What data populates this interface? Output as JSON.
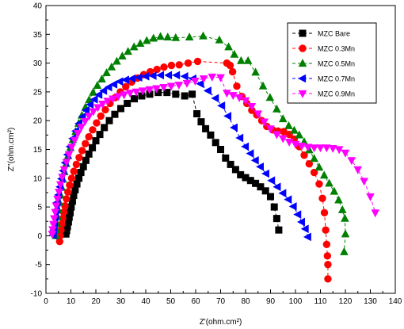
{
  "chart_data": {
    "type": "scatter",
    "xlabel": "Z'(ohm.cm²)",
    "ylabel": "Z''(ohm.cm²)",
    "xlim": [
      0,
      140
    ],
    "ylim": [
      -10,
      40
    ],
    "xticks": [
      0,
      10,
      20,
      30,
      40,
      50,
      60,
      70,
      80,
      90,
      100,
      110,
      120,
      130,
      140
    ],
    "yticks": [
      -10,
      -5,
      0,
      5,
      10,
      15,
      20,
      25,
      30,
      35,
      40
    ],
    "grid": false,
    "legend_position": "top-right",
    "series": [
      {
        "name": "MZC Bare",
        "color": "#000000",
        "marker": "square",
        "points": [
          [
            8.0,
            0.3
          ],
          [
            8.3,
            0.9
          ],
          [
            8.6,
            1.6
          ],
          [
            9.0,
            2.4
          ],
          [
            9.3,
            3.2
          ],
          [
            9.7,
            4.0
          ],
          [
            10.1,
            5.0
          ],
          [
            10.6,
            6.0
          ],
          [
            11.1,
            7.0
          ],
          [
            11.7,
            8.0
          ],
          [
            12.4,
            9.0
          ],
          [
            13.2,
            10.0
          ],
          [
            14.0,
            11.0
          ],
          [
            15.0,
            12.0
          ],
          [
            16.0,
            13.1
          ],
          [
            17.2,
            14.2
          ],
          [
            18.6,
            15.3
          ],
          [
            20.0,
            16.5
          ],
          [
            21.6,
            17.6
          ],
          [
            23.4,
            18.8
          ],
          [
            25.4,
            20.0
          ],
          [
            27.6,
            21.1
          ],
          [
            30.0,
            22.1
          ],
          [
            32.6,
            23.0
          ],
          [
            35.4,
            23.8
          ],
          [
            38.4,
            24.3
          ],
          [
            41.6,
            24.6
          ],
          [
            45.0,
            24.9
          ],
          [
            48.5,
            24.9
          ],
          [
            52.0,
            24.6
          ],
          [
            55.6,
            24.3
          ],
          [
            58.6,
            24.6
          ],
          [
            60.5,
            21.2
          ],
          [
            62.2,
            19.8
          ],
          [
            64.0,
            18.6
          ],
          [
            66.0,
            17.5
          ],
          [
            68.0,
            16.2
          ],
          [
            70.0,
            15.0
          ],
          [
            72.0,
            13.5
          ],
          [
            74.0,
            12.4
          ],
          [
            76.0,
            11.5
          ],
          [
            78.0,
            10.6
          ],
          [
            80.0,
            10.1
          ],
          [
            82.0,
            9.6
          ],
          [
            84.0,
            9.1
          ],
          [
            86.0,
            8.5
          ],
          [
            88.0,
            7.8
          ],
          [
            90.0,
            6.8
          ],
          [
            91.5,
            5.0
          ],
          [
            92.5,
            3.0
          ],
          [
            93.3,
            1.0
          ]
        ]
      },
      {
        "name": "MZC 0.3Mn",
        "color": "#ff0000",
        "marker": "circle",
        "points": [
          [
            5.5,
            -1.0
          ],
          [
            5.7,
            0.0
          ],
          [
            6.0,
            1.0
          ],
          [
            6.3,
            2.0
          ],
          [
            6.7,
            3.0
          ],
          [
            7.1,
            4.1
          ],
          [
            7.6,
            5.2
          ],
          [
            8.2,
            6.4
          ],
          [
            8.8,
            7.6
          ],
          [
            9.5,
            8.8
          ],
          [
            10.3,
            10.0
          ],
          [
            11.2,
            11.2
          ],
          [
            12.2,
            12.4
          ],
          [
            13.3,
            13.6
          ],
          [
            14.5,
            14.8
          ],
          [
            15.8,
            16.0
          ],
          [
            17.2,
            17.2
          ],
          [
            18.7,
            18.4
          ],
          [
            20.3,
            19.6
          ],
          [
            22.0,
            20.8
          ],
          [
            23.8,
            21.9
          ],
          [
            25.7,
            23.0
          ],
          [
            27.7,
            24.0
          ],
          [
            29.8,
            25.0
          ],
          [
            32.0,
            25.9
          ],
          [
            34.3,
            26.7
          ],
          [
            36.7,
            27.4
          ],
          [
            39.2,
            28.0
          ],
          [
            41.8,
            28.5
          ],
          [
            44.5,
            28.9
          ],
          [
            47.3,
            29.3
          ],
          [
            50.3,
            29.6
          ],
          [
            53.4,
            29.7
          ],
          [
            57.0,
            30.0
          ],
          [
            60.8,
            30.3
          ],
          [
            72.5,
            30.0
          ],
          [
            73.8,
            29.6
          ],
          [
            74.8,
            28.5
          ],
          [
            76.5,
            26.0
          ],
          [
            78.5,
            24.2
          ],
          [
            80.5,
            23.0
          ],
          [
            82.5,
            21.8
          ],
          [
            84.5,
            21.0
          ],
          [
            86.5,
            20.0
          ],
          [
            88.5,
            19.0
          ],
          [
            90.8,
            18.4
          ],
          [
            93.0,
            18.2
          ],
          [
            95.3,
            18.1
          ],
          [
            97.5,
            17.6
          ],
          [
            99.5,
            16.8
          ],
          [
            101.5,
            15.5
          ],
          [
            103.5,
            14.0
          ],
          [
            105.5,
            12.5
          ],
          [
            107.5,
            11.0
          ],
          [
            109.5,
            9.0
          ],
          [
            110.8,
            6.5
          ],
          [
            111.6,
            4.0
          ],
          [
            112.1,
            1.0
          ],
          [
            112.5,
            -1.5
          ],
          [
            112.8,
            -3.5
          ],
          [
            113.0,
            -5.0
          ],
          [
            113.0,
            -7.5
          ]
        ]
      },
      {
        "name": "MZC 0.5Mn",
        "color": "#008000",
        "marker": "triangle-up",
        "points": [
          [
            4.0,
            0.0
          ],
          [
            4.2,
            1.0
          ],
          [
            4.4,
            2.1
          ],
          [
            4.7,
            3.3
          ],
          [
            5.0,
            4.5
          ],
          [
            5.4,
            5.8
          ],
          [
            5.8,
            7.1
          ],
          [
            6.3,
            8.4
          ],
          [
            6.8,
            9.8
          ],
          [
            7.4,
            11.1
          ],
          [
            8.1,
            12.5
          ],
          [
            8.9,
            13.9
          ],
          [
            9.8,
            15.3
          ],
          [
            10.8,
            16.7
          ],
          [
            11.9,
            18.1
          ],
          [
            13.1,
            19.5
          ],
          [
            14.4,
            20.9
          ],
          [
            15.8,
            22.3
          ],
          [
            17.3,
            23.6
          ],
          [
            18.9,
            24.9
          ],
          [
            20.6,
            26.1
          ],
          [
            22.4,
            27.2
          ],
          [
            24.3,
            28.3
          ],
          [
            26.3,
            29.3
          ],
          [
            28.4,
            30.3
          ],
          [
            30.6,
            31.2
          ],
          [
            32.9,
            32.0
          ],
          [
            35.3,
            32.8
          ],
          [
            37.8,
            33.4
          ],
          [
            40.4,
            33.9
          ],
          [
            43.1,
            34.3
          ],
          [
            45.9,
            34.6
          ],
          [
            48.8,
            34.5
          ],
          [
            52.0,
            34.4
          ],
          [
            57.5,
            34.5
          ],
          [
            63.0,
            34.7
          ],
          [
            69.5,
            34.0
          ],
          [
            73.2,
            32.8
          ],
          [
            75.5,
            31.5
          ],
          [
            78.2,
            30.4
          ],
          [
            81.0,
            30.4
          ],
          [
            84.0,
            28.4
          ],
          [
            87.0,
            26.0
          ],
          [
            89.8,
            24.0
          ],
          [
            92.5,
            22.0
          ],
          [
            95.0,
            20.3
          ],
          [
            97.3,
            19.1
          ],
          [
            99.5,
            18.3
          ],
          [
            101.5,
            17.5
          ],
          [
            103.5,
            16.3
          ],
          [
            105.5,
            14.9
          ],
          [
            107.5,
            13.4
          ],
          [
            109.5,
            11.9
          ],
          [
            111.5,
            10.5
          ],
          [
            113.5,
            9.1
          ],
          [
            115.5,
            7.7
          ],
          [
            117.3,
            6.2
          ],
          [
            118.8,
            4.5
          ],
          [
            119.8,
            3.0
          ],
          [
            120.0,
            0.3
          ],
          [
            119.5,
            -2.8
          ]
        ]
      },
      {
        "name": "MZC 0.7Mn",
        "color": "#0000ff",
        "marker": "triangle-left",
        "points": [
          [
            3.0,
            0.1
          ],
          [
            3.2,
            1.0
          ],
          [
            3.5,
            2.1
          ],
          [
            3.8,
            3.3
          ],
          [
            4.2,
            4.5
          ],
          [
            4.6,
            5.8
          ],
          [
            5.1,
            7.1
          ],
          [
            5.7,
            8.5
          ],
          [
            6.3,
            9.9
          ],
          [
            7.0,
            11.3
          ],
          [
            7.8,
            12.7
          ],
          [
            8.7,
            14.1
          ],
          [
            9.7,
            15.5
          ],
          [
            10.8,
            16.9
          ],
          [
            12.0,
            18.2
          ],
          [
            13.3,
            19.5
          ],
          [
            14.7,
            20.7
          ],
          [
            16.2,
            21.8
          ],
          [
            17.8,
            22.8
          ],
          [
            19.5,
            23.7
          ],
          [
            21.3,
            24.5
          ],
          [
            23.2,
            25.2
          ],
          [
            25.2,
            25.8
          ],
          [
            27.3,
            26.3
          ],
          [
            29.6,
            26.8
          ],
          [
            32.0,
            27.1
          ],
          [
            34.6,
            27.3
          ],
          [
            37.3,
            27.5
          ],
          [
            40.1,
            27.7
          ],
          [
            43.0,
            27.8
          ],
          [
            46.0,
            27.9
          ],
          [
            49.2,
            27.9
          ],
          [
            52.4,
            27.9
          ],
          [
            55.7,
            27.7
          ],
          [
            59.0,
            27.3
          ],
          [
            62.0,
            26.4
          ],
          [
            65.0,
            25.2
          ],
          [
            68.0,
            23.9
          ],
          [
            70.5,
            22.6
          ],
          [
            73.0,
            20.8
          ],
          [
            75.5,
            18.8
          ],
          [
            77.8,
            17.0
          ],
          [
            80.0,
            15.5
          ],
          [
            82.0,
            14.3
          ],
          [
            84.0,
            13.1
          ],
          [
            86.0,
            12.0
          ],
          [
            88.2,
            10.8
          ],
          [
            90.5,
            9.6
          ],
          [
            92.8,
            8.5
          ],
          [
            95.0,
            7.4
          ],
          [
            97.2,
            6.3
          ],
          [
            99.2,
            5.1
          ],
          [
            101.0,
            3.7
          ],
          [
            102.5,
            2.4
          ],
          [
            104.0,
            1.2
          ],
          [
            105.0,
            -0.2
          ]
        ]
      },
      {
        "name": "MZC 0.9Mn",
        "color": "#ff00ff",
        "marker": "triangle-down",
        "points": [
          [
            2.5,
            0.3
          ],
          [
            2.7,
            1.1
          ],
          [
            3.0,
            2.0
          ],
          [
            3.3,
            3.0
          ],
          [
            3.7,
            4.1
          ],
          [
            4.1,
            5.2
          ],
          [
            4.6,
            6.4
          ],
          [
            5.2,
            7.6
          ],
          [
            5.8,
            8.9
          ],
          [
            6.5,
            10.2
          ],
          [
            7.3,
            11.5
          ],
          [
            8.2,
            12.8
          ],
          [
            9.2,
            14.1
          ],
          [
            10.3,
            15.4
          ],
          [
            11.5,
            16.6
          ],
          [
            12.8,
            17.8
          ],
          [
            14.2,
            18.9
          ],
          [
            15.7,
            19.9
          ],
          [
            17.3,
            20.8
          ],
          [
            19.0,
            21.6
          ],
          [
            20.8,
            22.3
          ],
          [
            22.7,
            22.9
          ],
          [
            24.7,
            23.4
          ],
          [
            26.8,
            23.8
          ],
          [
            29.0,
            24.2
          ],
          [
            31.3,
            24.5
          ],
          [
            33.7,
            24.8
          ],
          [
            36.2,
            25.0
          ],
          [
            38.8,
            25.2
          ],
          [
            41.5,
            25.4
          ],
          [
            44.3,
            25.6
          ],
          [
            47.2,
            25.8
          ],
          [
            50.2,
            26.0
          ],
          [
            53.3,
            26.2
          ],
          [
            56.5,
            26.5
          ],
          [
            59.8,
            26.9
          ],
          [
            63.2,
            27.3
          ],
          [
            66.6,
            27.6
          ],
          [
            70.0,
            27.5
          ],
          [
            72.5,
            24.8
          ],
          [
            75.0,
            24.4
          ],
          [
            77.5,
            24.0
          ],
          [
            80.0,
            23.5
          ],
          [
            82.5,
            22.5
          ],
          [
            85.0,
            21.2
          ],
          [
            87.5,
            19.8
          ],
          [
            90.0,
            18.6
          ],
          [
            92.5,
            17.6
          ],
          [
            95.0,
            16.9
          ],
          [
            97.5,
            16.3
          ],
          [
            100.0,
            15.9
          ],
          [
            102.5,
            15.6
          ],
          [
            105.0,
            15.4
          ],
          [
            107.5,
            15.3
          ],
          [
            110.0,
            15.3
          ],
          [
            112.5,
            15.3
          ],
          [
            115.0,
            15.2
          ],
          [
            117.5,
            15.0
          ],
          [
            120.0,
            14.4
          ],
          [
            122.5,
            13.1
          ],
          [
            125.0,
            11.5
          ],
          [
            127.5,
            9.5
          ],
          [
            130.0,
            6.8
          ],
          [
            132.0,
            4.0
          ]
        ]
      }
    ]
  }
}
